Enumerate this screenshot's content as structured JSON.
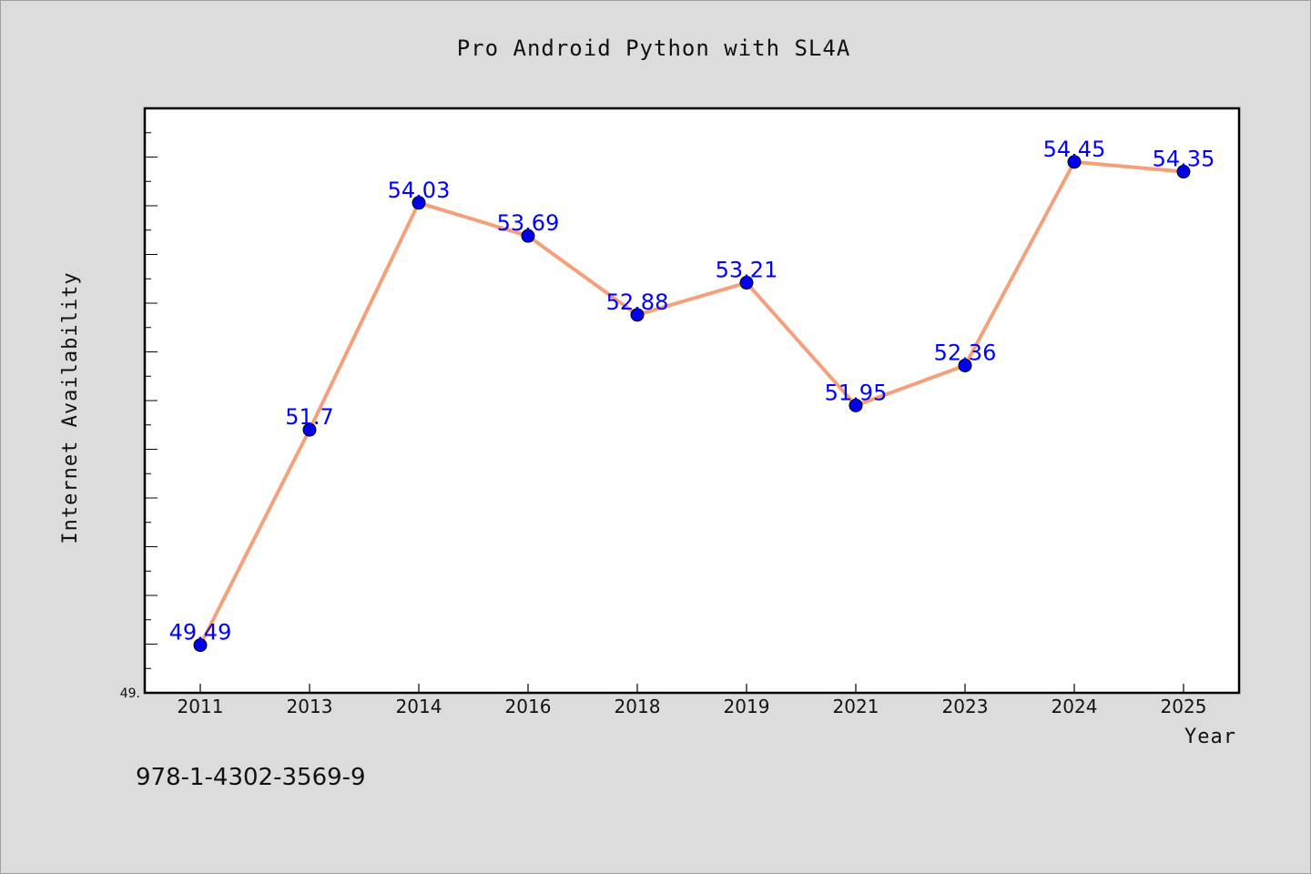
{
  "chart_data": {
    "type": "line",
    "title": "Pro Android Python with SL4A",
    "xlabel": "Year",
    "ylabel": "Internet Availability",
    "categories": [
      "2011",
      "2013",
      "2014",
      "2016",
      "2018",
      "2019",
      "2021",
      "2023",
      "2024",
      "2025"
    ],
    "series": [
      {
        "values": [
          49.49,
          51.7,
          54.03,
          53.69,
          52.88,
          53.21,
          51.95,
          52.36,
          54.45,
          54.35
        ],
        "data_labels": [
          "49.49",
          "51.7",
          "54.03",
          "53.69",
          "52.88",
          "53.21",
          "51.95",
          "52.36",
          "54.45",
          "54.35"
        ],
        "line_color": "#f4a07a",
        "marker_color": "#0000ee"
      }
    ],
    "ylim": [
      49.0,
      55.0
    ],
    "ytick_labels": [
      "49."
    ],
    "grid": false,
    "legend": "none",
    "label_color": "#0000ff",
    "plot_background": "#ffffff",
    "figure_background": "#dcdcdc"
  },
  "footer": {
    "isbn": "978-1-4302-3569-9"
  }
}
